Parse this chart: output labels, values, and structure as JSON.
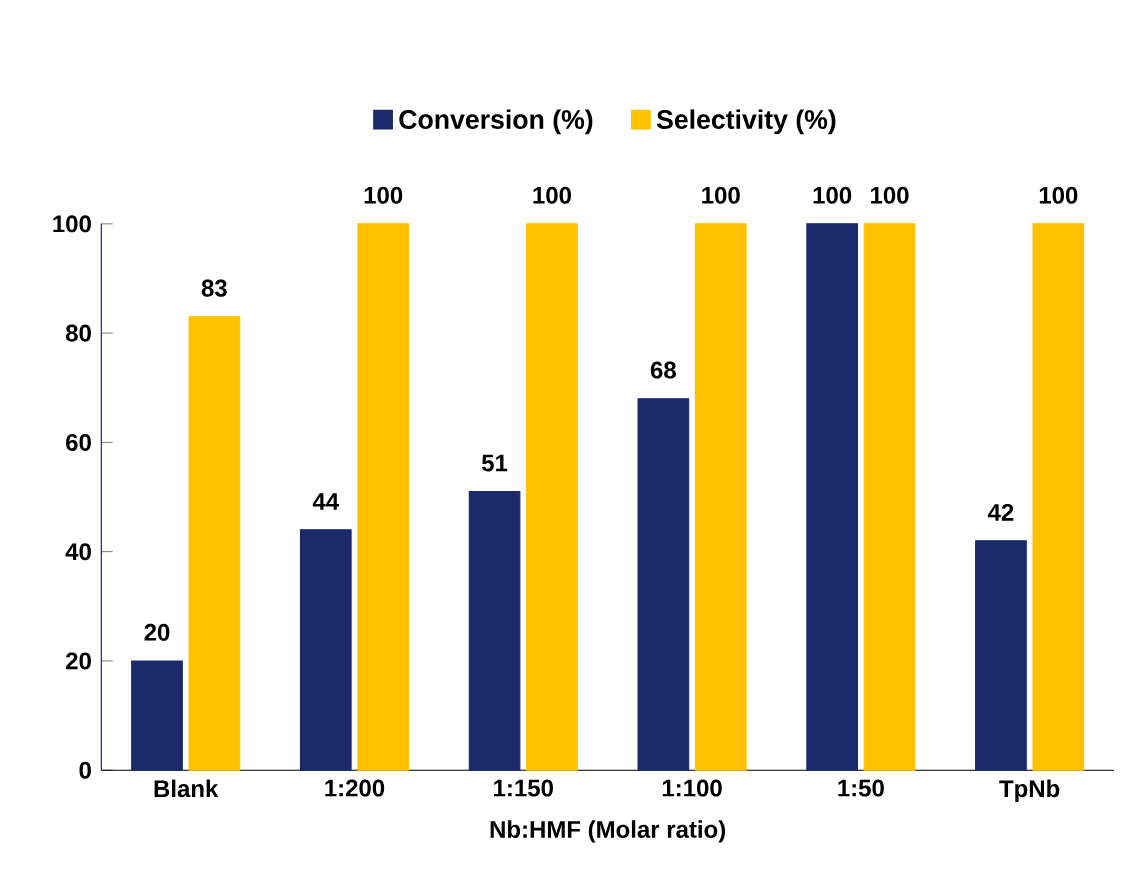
{
  "chart_data": {
    "type": "bar",
    "xlabel": "Nb:HMF (Molar ratio)",
    "categories": [
      "Blank",
      "1:200",
      "1:150",
      "1:100",
      "1:50",
      "TpNb"
    ],
    "series": [
      {
        "name": "Conversion (%)",
        "color": "#1b2a6b",
        "values": [
          20,
          44,
          51,
          68,
          100,
          42
        ]
      },
      {
        "name": "Selectivity (%)",
        "color": "#ffc000",
        "values": [
          83,
          100,
          100,
          100,
          100,
          100
        ]
      }
    ],
    "ylim": [
      0,
      100
    ],
    "yticks": [
      0,
      20,
      40,
      60,
      80,
      100
    ],
    "legend": "top",
    "data_labels": true
  }
}
